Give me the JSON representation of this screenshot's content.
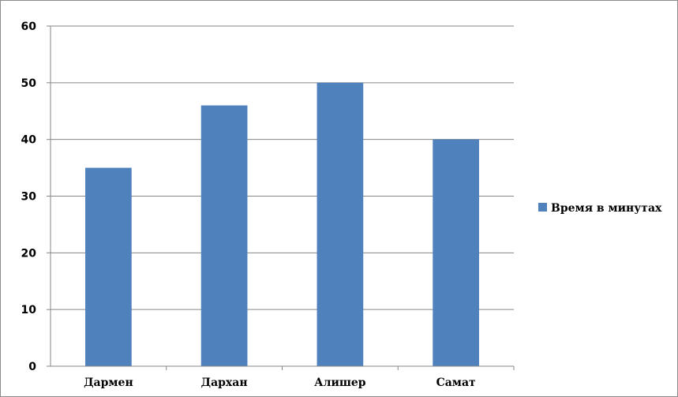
{
  "chart_data": {
    "type": "bar",
    "categories": [
      "Дармен",
      "Дархан",
      "Алишер",
      "Самат"
    ],
    "series": [
      {
        "name": "Время в минутах",
        "values": [
          35,
          46,
          50,
          40
        ],
        "color": "#4f81bd"
      }
    ],
    "title": "",
    "xlabel": "",
    "ylabel": "",
    "ylim": [
      0,
      60
    ],
    "yticks": [
      0,
      10,
      20,
      30,
      40,
      50,
      60
    ],
    "grid": true,
    "grid_color": "#868686",
    "legend_position": "right"
  }
}
